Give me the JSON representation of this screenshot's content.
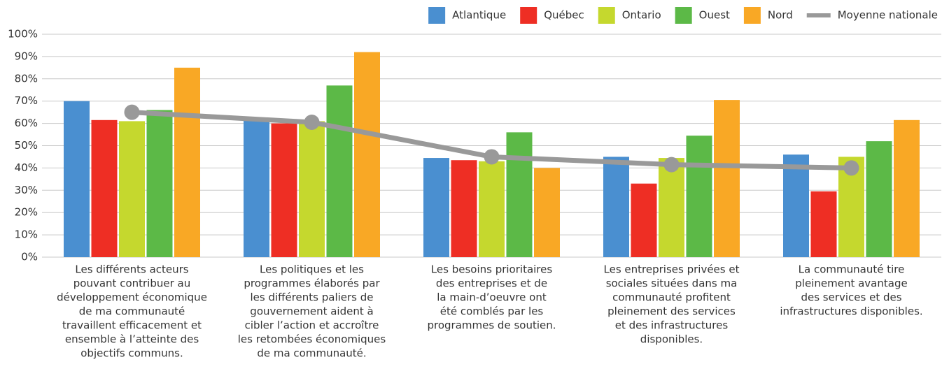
{
  "chart_data": {
    "type": "bar_line",
    "categories": [
      [
        "Les différents acteurs",
        "pouvant contribuer au",
        "développement économique",
        "de ma communauté",
        "travaillent efficacement et",
        "ensemble à l’atteinte des",
        "objectifs communs."
      ],
      [
        "Les politiques et les",
        "programmes élaborés par",
        "les différents paliers de",
        "gouvernement aident à",
        "cibler l’action et  accroître",
        "les retombées économiques",
        "de ma communauté."
      ],
      [
        "Les besoins prioritaires",
        "des entreprises et de",
        "la main-d’oeuvre ont",
        "été comblés par les",
        "programmes de soutien."
      ],
      [
        "Les entreprises privées et",
        "sociales situées dans ma",
        "communauté profitent",
        "pleinement des services",
        "et des infrastructures",
        "disponibles."
      ],
      [
        "La communauté tire",
        "pleinement avantage",
        "des services et des",
        "infrastructures disponibles."
      ]
    ],
    "series": [
      {
        "name": "Atlantique",
        "color": "#4a8fd0",
        "type": "bar",
        "values": [
          70,
          62,
          44.5,
          45,
          46
        ]
      },
      {
        "name": "Québec",
        "color": "#ee2e24",
        "type": "bar",
        "values": [
          61.5,
          60,
          43.5,
          33,
          29.5
        ]
      },
      {
        "name": "Ontario",
        "color": "#c5d82e",
        "type": "bar",
        "values": [
          61,
          61,
          43,
          44.5,
          45
        ]
      },
      {
        "name": "Ouest",
        "color": "#5cb947",
        "type": "bar",
        "values": [
          66,
          77,
          56,
          54.5,
          52
        ]
      },
      {
        "name": "Nord",
        "color": "#f9a825",
        "type": "bar",
        "values": [
          85,
          92,
          40,
          70.5,
          61.5
        ]
      },
      {
        "name": "Moyenne nationale",
        "color": "#999999",
        "type": "line",
        "values": [
          65,
          60.5,
          45,
          41.5,
          40
        ]
      }
    ],
    "ylim": [
      0,
      100
    ],
    "yticks": [
      {
        "value": 0,
        "label": "0%"
      },
      {
        "value": 10,
        "label": "10%"
      },
      {
        "value": 20,
        "label": "20%"
      },
      {
        "value": 30,
        "label": "30%"
      },
      {
        "value": 40,
        "label": "40%"
      },
      {
        "value": 50,
        "label": "50%"
      },
      {
        "value": 60,
        "label": "60%"
      },
      {
        "value": 70,
        "label": "70%"
      },
      {
        "value": 80,
        "label": "80%"
      },
      {
        "value": 90,
        "label": "90%"
      },
      {
        "value": 100,
        "label": "100%"
      }
    ],
    "grid": true,
    "legend": "top-right"
  }
}
